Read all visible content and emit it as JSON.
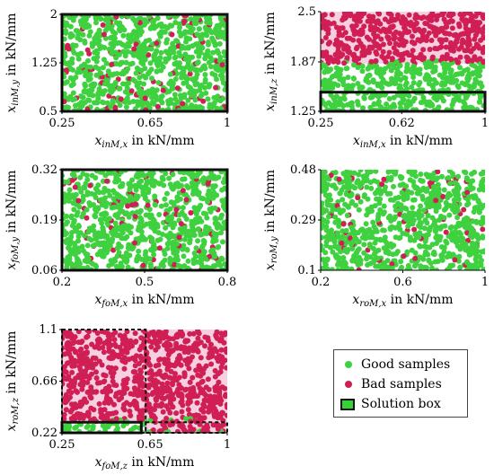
{
  "legend": {
    "good": "Good samples",
    "bad": "Bad samples",
    "box": "Solution box"
  },
  "colors": {
    "good": "#3fd13f",
    "bad": "#d01f55",
    "box_fill": "#33d433",
    "box_edge": "#111111",
    "bad_region": "#f6cfe0"
  },
  "chart_data": [
    {
      "type": "scatter",
      "xlabel_main": "x",
      "xlabel_sub": "inM,x",
      "xlabel_unit": " in kN/mm",
      "ylabel_main": "x",
      "ylabel_sub": "inM,y",
      "ylabel_unit": " in kN/mm",
      "xlim": [
        0.25,
        1
      ],
      "ylim": [
        0.5,
        2
      ],
      "xticks": [
        0.25,
        0.65,
        1
      ],
      "xtick_labels": [
        "0.25",
        "0.65",
        "1"
      ],
      "yticks": [
        0.5,
        1.25,
        2
      ],
      "ytick_labels": [
        "0.5",
        "1.25",
        "2"
      ],
      "bad_regions": [],
      "boxes": [
        {
          "x": [
            0.25,
            1
          ],
          "y": [
            0.5,
            2
          ],
          "style": "solid"
        }
      ]
    },
    {
      "type": "scatter",
      "xlabel_main": "x",
      "xlabel_sub": "inM,x",
      "xlabel_unit": " in kN/mm",
      "ylabel_main": "x",
      "ylabel_sub": "inM,z",
      "ylabel_unit": " in kN/mm",
      "xlim": [
        0.25,
        1
      ],
      "ylim": [
        1.25,
        2.5
      ],
      "xticks": [
        0.25,
        0.62,
        1
      ],
      "xtick_labels": [
        "0.25",
        "0.62",
        "1"
      ],
      "yticks": [
        1.25,
        1.87,
        2.5
      ],
      "ytick_labels": [
        "1.25",
        "1.87",
        "2.5"
      ],
      "bad_regions": [
        {
          "x": [
            0.25,
            1
          ],
          "y": [
            1.85,
            2.5
          ]
        }
      ],
      "boxes": [
        {
          "x": [
            0.25,
            1
          ],
          "y": [
            1.25,
            1.49
          ],
          "style": "solid"
        }
      ]
    },
    {
      "type": "scatter",
      "xlabel_main": "x",
      "xlabel_sub": "foM,x",
      "xlabel_unit": " in kN/mm",
      "ylabel_main": "x",
      "ylabel_sub": "foM,y",
      "ylabel_unit": " in kN/mm",
      "xlim": [
        0.2,
        0.8
      ],
      "ylim": [
        0.06,
        0.32
      ],
      "xticks": [
        0.2,
        0.5,
        0.8
      ],
      "xtick_labels": [
        "0.2",
        "0.5",
        "0.8"
      ],
      "yticks": [
        0.06,
        0.19,
        0.32
      ],
      "ytick_labels": [
        "0.06",
        "0.19",
        "0.32"
      ],
      "bad_regions": [],
      "boxes": [
        {
          "x": [
            0.2,
            0.8
          ],
          "y": [
            0.06,
            0.32
          ],
          "style": "solid"
        }
      ]
    },
    {
      "type": "scatter",
      "xlabel_main": "x",
      "xlabel_sub": "roM,x",
      "xlabel_unit": " in kN/mm",
      "ylabel_main": "x",
      "ylabel_sub": "roM,y",
      "ylabel_unit": " in kN/mm",
      "xlim": [
        0.2,
        1
      ],
      "ylim": [
        0.1,
        0.48
      ],
      "xticks": [
        0.2,
        0.6,
        1
      ],
      "xtick_labels": [
        "0.2",
        "0.6",
        "1"
      ],
      "yticks": [
        0.1,
        0.29,
        0.48
      ],
      "ytick_labels": [
        "0.1",
        "0.29",
        "0.48"
      ],
      "bad_regions": [],
      "boxes": []
    },
    {
      "type": "scatter",
      "xlabel_main": "x",
      "xlabel_sub": "foM,z",
      "xlabel_unit": " in kN/mm",
      "ylabel_main": "x",
      "ylabel_sub": "roM,z",
      "ylabel_unit": " in kN/mm",
      "xlim": [
        0.25,
        1
      ],
      "ylim": [
        0.22,
        1.1
      ],
      "xticks": [
        0.25,
        0.65,
        1
      ],
      "xtick_labels": [
        "0.25",
        "0.65",
        "1"
      ],
      "yticks": [
        0.22,
        0.66,
        1.1
      ],
      "ytick_labels": [
        "0.22",
        "0.66",
        "1.1"
      ],
      "bad_regions": [
        {
          "x": [
            0.25,
            1
          ],
          "y": [
            0.32,
            1.1
          ]
        },
        {
          "x": [
            0.63,
            1
          ],
          "y": [
            0.22,
            0.32
          ]
        }
      ],
      "boxes": [
        {
          "x": [
            0.25,
            0.61
          ],
          "y": [
            0.22,
            0.31
          ],
          "style": "solid"
        },
        {
          "x": [
            0.25,
            0.63
          ],
          "y": [
            0.22,
            1.1
          ],
          "style": "dashed"
        },
        {
          "x": [
            0.63,
            1
          ],
          "y": [
            0.22,
            0.31
          ],
          "style": "dashed"
        }
      ]
    }
  ]
}
